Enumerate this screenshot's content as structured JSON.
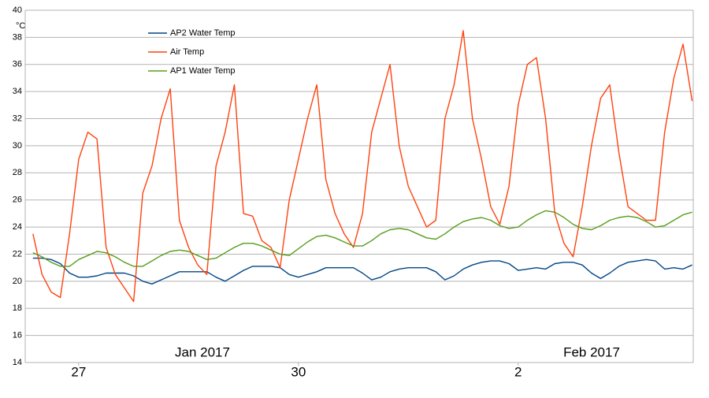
{
  "chart_data": {
    "type": "line",
    "y_unit": "°C",
    "month_labels": [
      "Jan 2017",
      "Feb 2017"
    ],
    "x": [
      26.375,
      26.5,
      26.625,
      26.75,
      26.875,
      27,
      27.125,
      27.25,
      27.375,
      27.5,
      27.625,
      27.75,
      27.875,
      28,
      28.125,
      28.25,
      28.375,
      28.5,
      28.625,
      28.75,
      28.875,
      29,
      29.125,
      29.25,
      29.375,
      29.5,
      29.625,
      29.75,
      29.875,
      30,
      30.125,
      30.25,
      30.375,
      30.5,
      30.625,
      30.75,
      30.875,
      31,
      31.125,
      31.25,
      31.375,
      31.5,
      31.625,
      31.75,
      31.875,
      32,
      32.125,
      32.25,
      32.375,
      32.5,
      32.625,
      32.75,
      32.875,
      33,
      33.125,
      33.25,
      33.375,
      33.5,
      33.625,
      33.75,
      33.875,
      34,
      34.125,
      34.25,
      34.375,
      34.5,
      34.625,
      34.75,
      34.875,
      35,
      35.125,
      35.25,
      35.375
    ],
    "series": [
      {
        "name": "AP2 Water Temp",
        "color": "#004586",
        "values": [
          21.7,
          21.7,
          21.6,
          21.3,
          20.6,
          20.3,
          20.3,
          20.4,
          20.6,
          20.6,
          20.6,
          20.4,
          20.0,
          19.8,
          20.1,
          20.4,
          20.7,
          20.7,
          20.7,
          20.7,
          20.3,
          20.0,
          20.4,
          20.8,
          21.1,
          21.1,
          21.1,
          21.0,
          20.5,
          20.3,
          20.5,
          20.7,
          21.0,
          21.0,
          21.0,
          21.0,
          20.6,
          20.1,
          20.3,
          20.7,
          20.9,
          21.0,
          21.0,
          21.0,
          20.7,
          20.1,
          20.4,
          20.9,
          21.2,
          21.4,
          21.5,
          21.5,
          21.3,
          20.8,
          20.9,
          21.0,
          20.9,
          21.3,
          21.4,
          21.4,
          21.2,
          20.6,
          20.2,
          20.6,
          21.1,
          21.4,
          21.5,
          21.6,
          21.5,
          20.9,
          21.0,
          20.9,
          21.2
        ]
      },
      {
        "name": "Air Temp",
        "color": "#ff420e",
        "values": [
          23.5,
          20.5,
          19.2,
          18.8,
          23.5,
          29,
          31,
          30.5,
          22.5,
          20.5,
          19.5,
          18.5,
          26.5,
          28.5,
          32,
          34.2,
          24.5,
          22.5,
          21.2,
          20.5,
          28.5,
          31,
          34.5,
          25,
          24.8,
          23,
          22.5,
          21,
          26,
          29,
          32,
          34.5,
          27.5,
          25,
          23.5,
          22.5,
          25,
          31,
          33.5,
          36,
          30,
          27,
          25.5,
          24,
          24.5,
          32,
          34.5,
          38.5,
          32,
          29,
          25.5,
          24.2,
          27,
          33,
          36,
          36.5,
          32,
          25,
          22.8,
          21.8,
          25.5,
          30,
          33.5,
          34.5,
          29.5,
          25.5,
          25,
          24.5,
          24.5,
          31,
          35,
          37.5,
          33.3
        ]
      },
      {
        "name": "AP1 Water Temp",
        "color": "#579d1c",
        "values": [
          22.1,
          21.8,
          21.4,
          21.1,
          21.1,
          21.6,
          21.9,
          22.2,
          22.1,
          21.8,
          21.4,
          21.1,
          21.1,
          21.5,
          21.9,
          22.2,
          22.3,
          22.2,
          21.9,
          21.6,
          21.7,
          22.1,
          22.5,
          22.8,
          22.8,
          22.6,
          22.3,
          22.0,
          21.9,
          22.4,
          22.9,
          23.3,
          23.4,
          23.2,
          22.9,
          22.6,
          22.6,
          23.0,
          23.5,
          23.8,
          23.9,
          23.8,
          23.5,
          23.2,
          23.1,
          23.5,
          24.0,
          24.4,
          24.6,
          24.7,
          24.5,
          24.1,
          23.9,
          24.0,
          24.5,
          24.9,
          25.2,
          25.1,
          24.7,
          24.2,
          23.9,
          23.8,
          24.1,
          24.5,
          24.7,
          24.8,
          24.7,
          24.4,
          24.0,
          24.1,
          24.5,
          24.9,
          25.1
        ]
      }
    ],
    "xlim": [
      26.27,
      35.39
    ],
    "xticks": [
      27,
      30,
      {
        "value": 33,
        "label": "2"
      }
    ],
    "ylim": [
      14,
      40
    ],
    "yticks": [
      14,
      16,
      18,
      20,
      22,
      24,
      26,
      28,
      30,
      32,
      34,
      36,
      38,
      40
    ],
    "grid": true,
    "legend": "top-left"
  }
}
